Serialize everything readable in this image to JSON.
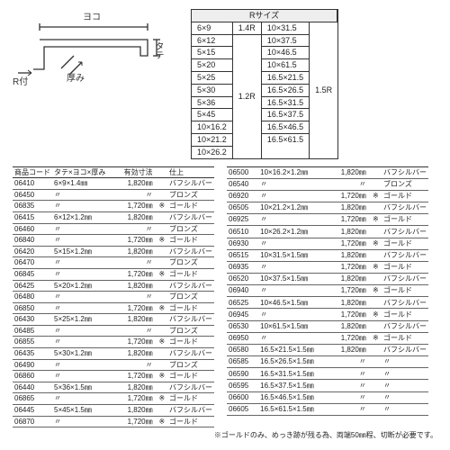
{
  "diagram": {
    "labels": {
      "yoko": "ヨコ",
      "tate": "タテ",
      "atsumi": "厚み",
      "rtsuki": "R付"
    }
  },
  "rsize": {
    "title": "Rサイズ",
    "group1": {
      "sizes": [
        "6×9"
      ],
      "r": "1.4R"
    },
    "group2": {
      "sizes": [
        "6×12",
        "5×15",
        "5×20",
        "5×25",
        "5×30",
        "5×36",
        "5×45",
        "10×16.2",
        "10×21.2",
        "10×26.2"
      ],
      "r": "1.2R"
    },
    "group3": {
      "sizes": [
        "10×31.5",
        "10×37.5",
        "10×46.5",
        "10×61.5",
        "16.5×21.5",
        "16.5×26.5",
        "16.5×31.5",
        "16.5×37.5",
        "16.5×46.5",
        "16.5×61.5"
      ],
      "r": "1.5R"
    }
  },
  "headers": {
    "code": "商品コード",
    "dim": "タテ×ヨコ×厚み",
    "len": "有効寸法",
    "fin": "仕上"
  },
  "finishes": {
    "buff": "バフシルバー",
    "bronze": "ブロンズ",
    "gold": "ゴールド"
  },
  "ditto": "〃",
  "star": "※",
  "left": [
    {
      "c": "06410",
      "d": "6×9×1.4㎜",
      "l": "1,820㎜",
      "s": "",
      "f": "buff"
    },
    {
      "c": "06450",
      "d": "〃",
      "l": "〃",
      "s": "",
      "f": "bronze"
    },
    {
      "c": "06835",
      "d": "〃",
      "l": "1,720㎜",
      "s": "※",
      "f": "gold"
    },
    {
      "c": "06415",
      "d": "6×12×1.2㎜",
      "l": "1,820㎜",
      "s": "",
      "f": "buff"
    },
    {
      "c": "06460",
      "d": "〃",
      "l": "〃",
      "s": "",
      "f": "bronze"
    },
    {
      "c": "06840",
      "d": "〃",
      "l": "1,720㎜",
      "s": "※",
      "f": "gold"
    },
    {
      "c": "06420",
      "d": "5×15×1.2㎜",
      "l": "1,820㎜",
      "s": "",
      "f": "buff"
    },
    {
      "c": "06470",
      "d": "〃",
      "l": "〃",
      "s": "",
      "f": "bronze"
    },
    {
      "c": "06845",
      "d": "〃",
      "l": "1,720㎜",
      "s": "※",
      "f": "gold"
    },
    {
      "c": "06425",
      "d": "5×20×1.2㎜",
      "l": "1,820㎜",
      "s": "",
      "f": "buff"
    },
    {
      "c": "06480",
      "d": "〃",
      "l": "〃",
      "s": "",
      "f": "bronze"
    },
    {
      "c": "06850",
      "d": "〃",
      "l": "1,720㎜",
      "s": "※",
      "f": "gold"
    },
    {
      "c": "06430",
      "d": "5×25×1.2㎜",
      "l": "1,820㎜",
      "s": "",
      "f": "buff"
    },
    {
      "c": "06485",
      "d": "〃",
      "l": "〃",
      "s": "",
      "f": "bronze"
    },
    {
      "c": "06855",
      "d": "〃",
      "l": "1,720㎜",
      "s": "※",
      "f": "gold"
    },
    {
      "c": "06435",
      "d": "5×30×1.2㎜",
      "l": "1,820㎜",
      "s": "",
      "f": "buff"
    },
    {
      "c": "06490",
      "d": "〃",
      "l": "〃",
      "s": "",
      "f": "bronze"
    },
    {
      "c": "06860",
      "d": "〃",
      "l": "1,720㎜",
      "s": "※",
      "f": "gold"
    },
    {
      "c": "06440",
      "d": "5×36×1.5㎜",
      "l": "1,820㎜",
      "s": "",
      "f": "buff"
    },
    {
      "c": "06865",
      "d": "〃",
      "l": "1,720㎜",
      "s": "※",
      "f": "gold"
    },
    {
      "c": "06445",
      "d": "5×45×1.5㎜",
      "l": "1,820㎜",
      "s": "",
      "f": "buff"
    },
    {
      "c": "06870",
      "d": "〃",
      "l": "1,720㎜",
      "s": "※",
      "f": "gold"
    }
  ],
  "right": [
    {
      "c": "06500",
      "d": "10×16.2×1.2㎜",
      "l": "1,820㎜",
      "s": "",
      "f": "buff"
    },
    {
      "c": "06540",
      "d": "〃",
      "l": "〃",
      "s": "",
      "f": "bronze"
    },
    {
      "c": "06920",
      "d": "〃",
      "l": "1,720㎜",
      "s": "※",
      "f": "gold"
    },
    {
      "c": "06505",
      "d": "10×21.2×1.2㎜",
      "l": "1,820㎜",
      "s": "",
      "f": "buff"
    },
    {
      "c": "06925",
      "d": "〃",
      "l": "1,720㎜",
      "s": "※",
      "f": "gold"
    },
    {
      "c": "06510",
      "d": "10×26.2×1.2㎜",
      "l": "1,820㎜",
      "s": "",
      "f": "buff"
    },
    {
      "c": "06930",
      "d": "〃",
      "l": "1,720㎜",
      "s": "※",
      "f": "gold"
    },
    {
      "c": "06515",
      "d": "10×31.5×1.5㎜",
      "l": "1,820㎜",
      "s": "",
      "f": "buff"
    },
    {
      "c": "06935",
      "d": "〃",
      "l": "1,720㎜",
      "s": "※",
      "f": "gold"
    },
    {
      "c": "06520",
      "d": "10×37.5×1.5㎜",
      "l": "1,820㎜",
      "s": "",
      "f": "buff"
    },
    {
      "c": "06940",
      "d": "〃",
      "l": "1,720㎜",
      "s": "※",
      "f": "gold"
    },
    {
      "c": "06525",
      "d": "10×46.5×1.5㎜",
      "l": "1,820㎜",
      "s": "",
      "f": "buff"
    },
    {
      "c": "06945",
      "d": "〃",
      "l": "1,720㎜",
      "s": "※",
      "f": "gold"
    },
    {
      "c": "06530",
      "d": "10×61.5×1.5㎜",
      "l": "1,820㎜",
      "s": "",
      "f": "buff"
    },
    {
      "c": "06950",
      "d": "〃",
      "l": "1,720㎜",
      "s": "※",
      "f": "gold"
    },
    {
      "c": "06580",
      "d": "16.5×21.5×1.5㎜",
      "l": "1,820㎜",
      "s": "",
      "f": "buff"
    },
    {
      "c": "06585",
      "d": "16.5×26.5×1.5㎜",
      "l": "〃",
      "s": "",
      "f": "〃"
    },
    {
      "c": "06590",
      "d": "16.5×31.5×1.5㎜",
      "l": "〃",
      "s": "",
      "f": "〃"
    },
    {
      "c": "06595",
      "d": "16.5×37.5×1.5㎜",
      "l": "〃",
      "s": "",
      "f": "〃"
    },
    {
      "c": "06600",
      "d": "16.5×46.5×1.5㎜",
      "l": "〃",
      "s": "",
      "f": "〃"
    },
    {
      "c": "06605",
      "d": "16.5×61.5×1.5㎜",
      "l": "〃",
      "s": "",
      "f": "〃"
    }
  ],
  "note": "※ゴールドのみ、めっき跡が残る為、両端50㎜程、切断が必要です。"
}
